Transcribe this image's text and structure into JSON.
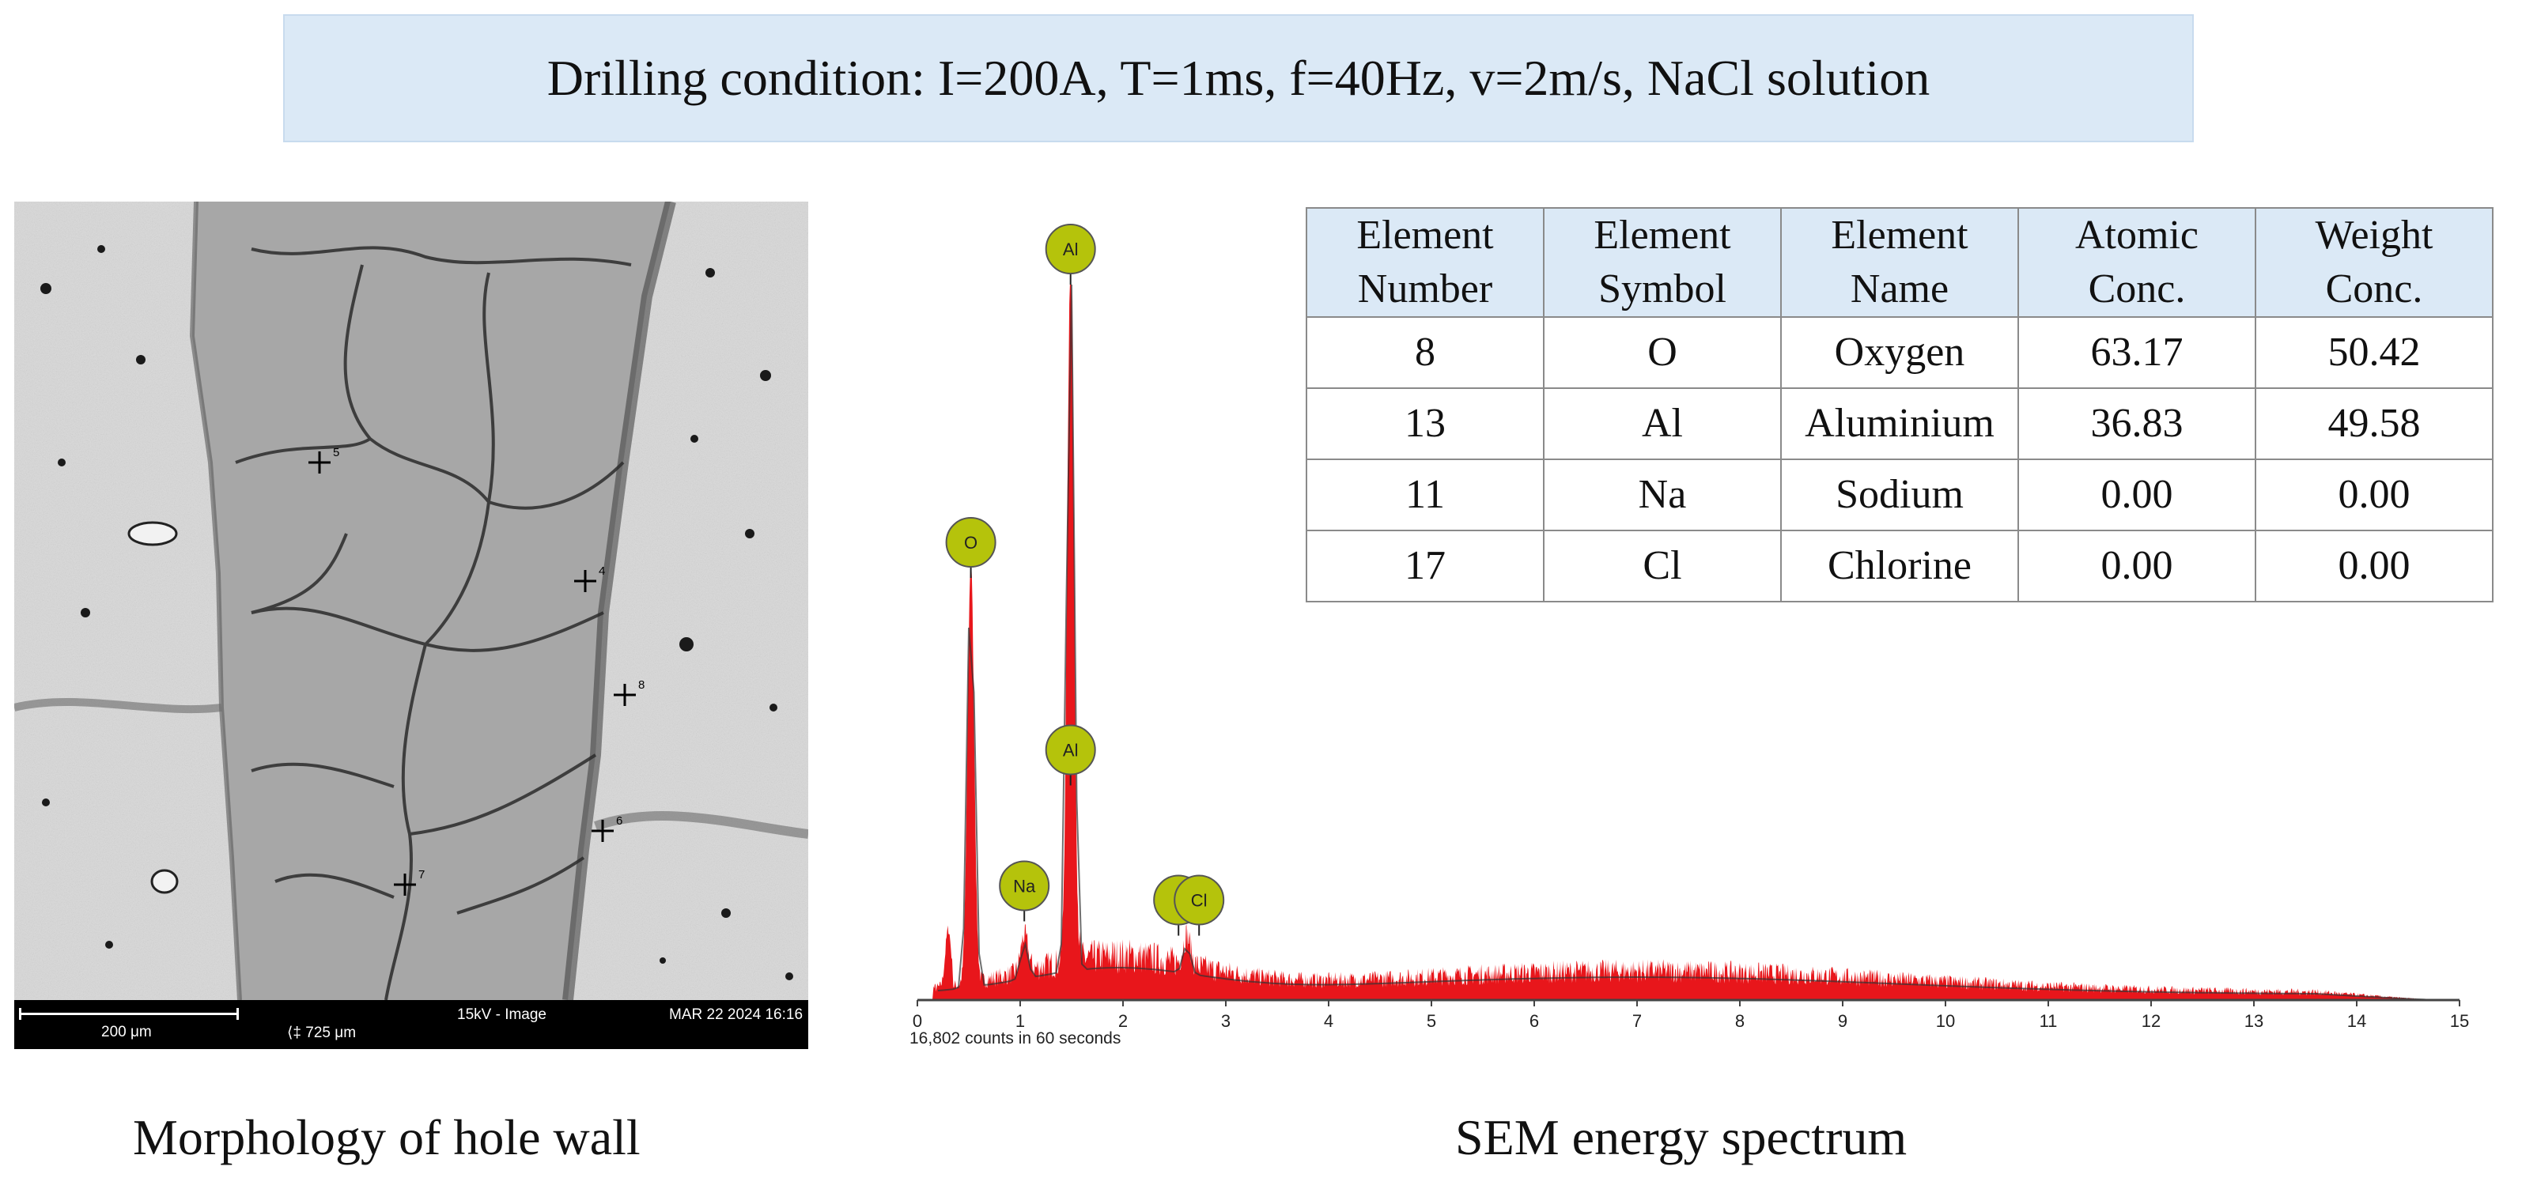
{
  "header": {
    "condition": "Drilling condition: I=200A, T=1ms, f=40Hz, v=2m/s, NaCl solution"
  },
  "micrograph": {
    "scale_text": "200 μm",
    "span_text": "725 μm",
    "mode_text": "15kV - Image",
    "date_text": "MAR 22 2024 16:16",
    "point_labels": [
      "5",
      "4",
      "8",
      "6",
      "7"
    ],
    "caption": "Morphology of hole wall"
  },
  "table": {
    "headers": [
      [
        "Element",
        "Number"
      ],
      [
        "Element",
        "Symbol"
      ],
      [
        "Element",
        "Name"
      ],
      [
        "Atomic",
        "Conc."
      ],
      [
        "Weight",
        "Conc."
      ]
    ],
    "rows": [
      [
        "8",
        "O",
        "Oxygen",
        "63.17",
        "50.42"
      ],
      [
        "13",
        "Al",
        "Aluminium",
        "36.83",
        "49.58"
      ],
      [
        "11",
        "Na",
        "Sodium",
        "0.00",
        "0.00"
      ],
      [
        "17",
        "Cl",
        "Chlorine",
        "0.00",
        "0.00"
      ]
    ]
  },
  "spectrum": {
    "caption": "SEM energy spectrum",
    "counts_text": "16,802 counts in 60 seconds",
    "fill_color": "#e8161b",
    "marker_color": "#b5c30b"
  },
  "chart_data": {
    "type": "area",
    "xlim": [
      0,
      15
    ],
    "x_ticks": [
      "0",
      "1",
      "2",
      "3",
      "4",
      "5",
      "6",
      "7",
      "8",
      "9",
      "10",
      "11",
      "12",
      "13",
      "14",
      "15"
    ],
    "peaks": [
      {
        "label": "O",
        "x": 0.52,
        "height": 0.59
      },
      {
        "label": "Al",
        "x": 1.49,
        "height": 1.0
      },
      {
        "label": "Na",
        "x": 1.04,
        "height": 0.05
      },
      {
        "label": "Cl",
        "x": 2.62,
        "height": 0.04
      }
    ],
    "markers": [
      {
        "label": "Al",
        "x": 1.49,
        "level": 1.0
      },
      {
        "label": "O",
        "x": 0.52,
        "level": 0.59
      },
      {
        "label": "Al",
        "x": 1.49,
        "level": 0.3
      },
      {
        "label": "Na",
        "x": 1.04,
        "level": 0.11
      },
      {
        "label": "",
        "x": 2.54,
        "level": 0.09
      },
      {
        "label": "Cl",
        "x": 2.74,
        "level": 0.09
      }
    ]
  }
}
